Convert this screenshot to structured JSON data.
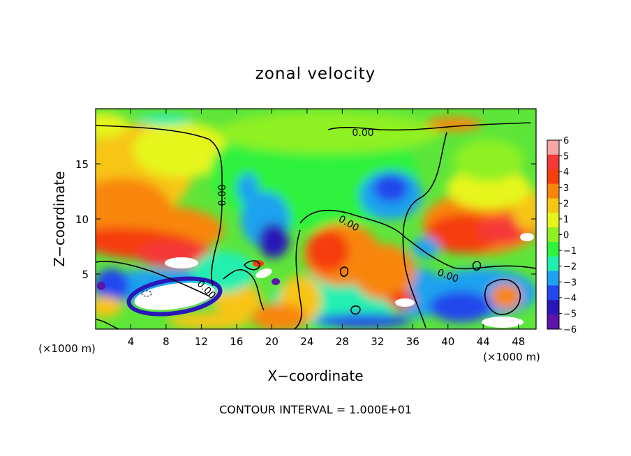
{
  "chart_data": {
    "type": "heatmap",
    "title": "zonal velocity",
    "xlabel": "X−coordinate",
    "ylabel": "Z−coordinate",
    "x_unit_left": "(×1000 m)",
    "x_unit_right": "(×1000 m)",
    "xlim": [
      0,
      50
    ],
    "ylim": [
      0,
      20
    ],
    "xticks": [
      4,
      8,
      12,
      16,
      20,
      24,
      28,
      32,
      36,
      40,
      44,
      48
    ],
    "yticks": [
      5,
      10,
      15
    ],
    "colorbar": {
      "ticks": [
        "6",
        "5",
        "4",
        "3",
        "2",
        "1",
        "0",
        "−1",
        "−2",
        "−3",
        "−4",
        "−5",
        "−6"
      ],
      "range": [
        -6,
        6
      ],
      "colors": [
        "#f7a6a6",
        "#f53838",
        "#f53e0d",
        "#f8860b",
        "#f7c514",
        "#e6f51a",
        "#8ff021",
        "#2ff23d",
        "#21efb0",
        "#1ea2ef",
        "#2347ed",
        "#2a17b8",
        "#5d15a9"
      ]
    },
    "contour_labels": [
      "0.00",
      "0.00",
      "0.00",
      "0.00",
      "0.00"
    ],
    "footer": "CONTOUR INTERVAL = 1.000E+01"
  }
}
